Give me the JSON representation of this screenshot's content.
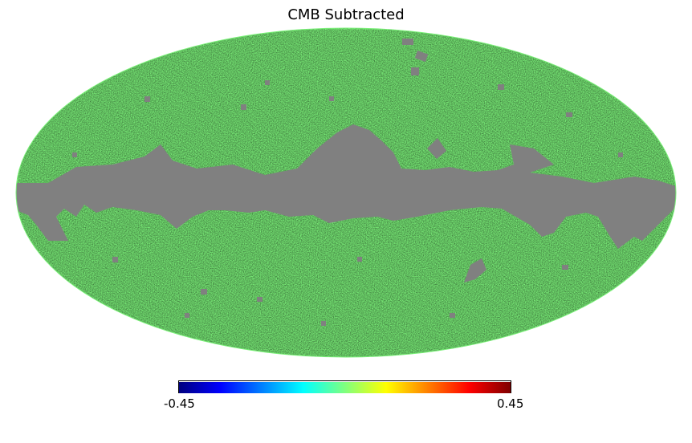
{
  "title": "CMB Subtracted",
  "colorbar": {
    "min_label": "-0.45",
    "max_label": "0.45",
    "colormap": "jet",
    "stops": [
      "#00007f",
      "#0000ff",
      "#0080ff",
      "#00ffff",
      "#7fff7f",
      "#ffff00",
      "#ff8000",
      "#ff0000",
      "#7f0000"
    ]
  },
  "map": {
    "projection": "Mollweide",
    "mask_color": "#808080",
    "background_field_color": "#7cf07a",
    "mask_regions": [
      "galactic-plane-mask",
      "point-source-masks"
    ]
  }
}
